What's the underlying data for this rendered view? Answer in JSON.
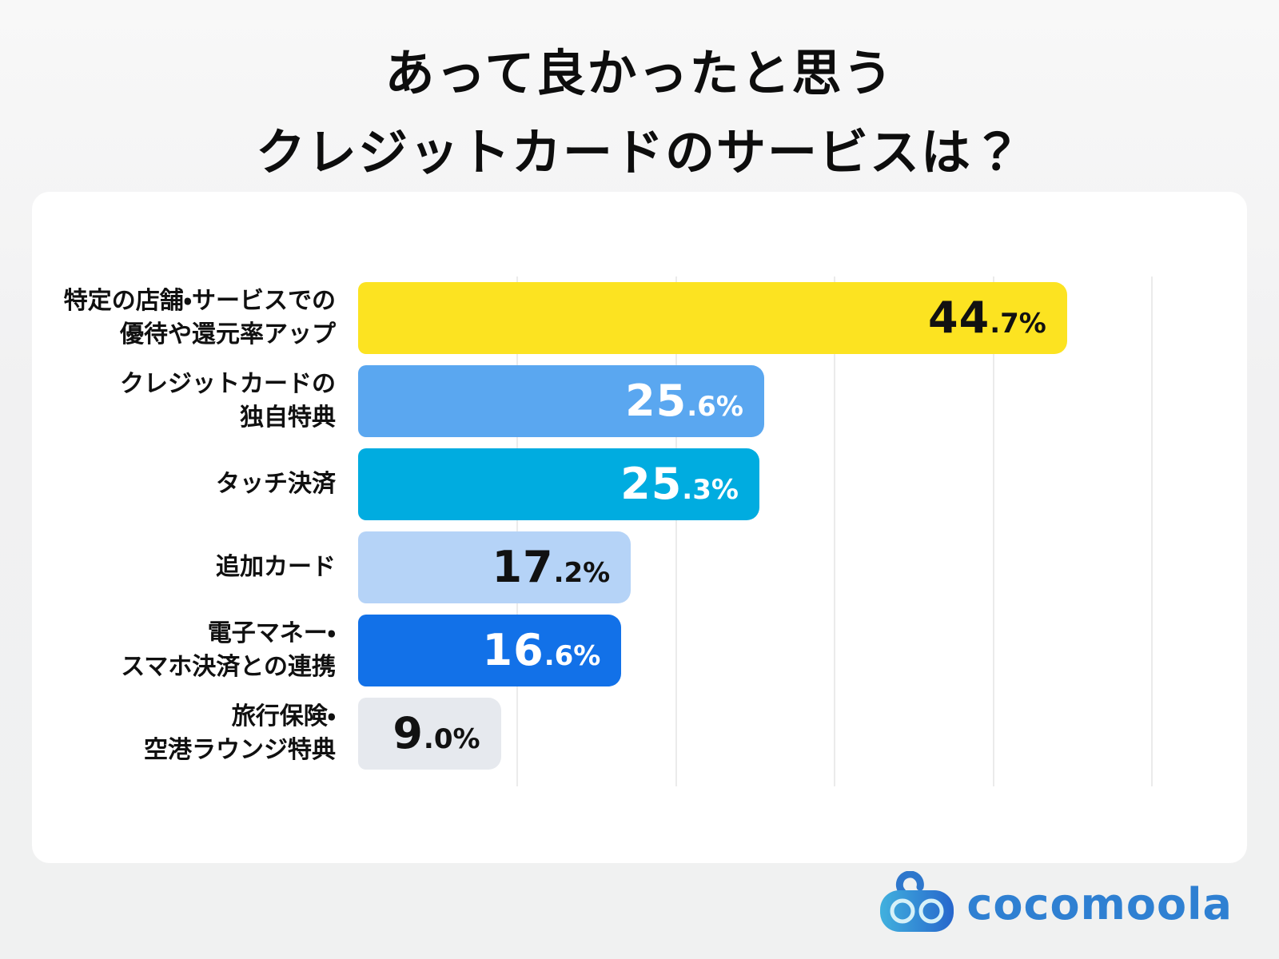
{
  "title": {
    "line1": "あって良かったと思う",
    "line2": "クレジットカードのサービスは？"
  },
  "chart_data": {
    "type": "bar",
    "orientation": "horizontal",
    "title": "あって良かったと思うクレジットカードのサービスは？",
    "xlabel": "",
    "ylabel": "",
    "xlim": [
      0,
      50
    ],
    "gridline_interval_pct": 10,
    "grid": "vertical-lines",
    "legend": "none",
    "categories": [
      "特定の店舗・サービスでの優待や還元率アップ",
      "クレジットカードの独自特典",
      "タッチ決済",
      "追加カード",
      "電子マネー・スマホ決済との連携",
      "旅行保険・空港ラウンジ特典"
    ],
    "values": [
      44.7,
      25.6,
      25.3,
      17.2,
      16.6,
      9.0
    ],
    "bars": [
      {
        "label": "特定の店舗・サービスでの\n優待や還元率アップ",
        "value": 44.7,
        "int_part": "44",
        "frac_part": ".7%",
        "color": "#fce321",
        "text_color": "#111111"
      },
      {
        "label": "クレジットカードの\n独自特典",
        "value": 25.6,
        "int_part": "25",
        "frac_part": ".6%",
        "color": "#5aa7f0",
        "text_color": "#ffffff"
      },
      {
        "label": "タッチ決済",
        "value": 25.3,
        "int_part": "25",
        "frac_part": ".3%",
        "color": "#00ace0",
        "text_color": "#ffffff"
      },
      {
        "label": "追加カード",
        "value": 17.2,
        "int_part": "17",
        "frac_part": ".2%",
        "color": "#b5d3f7",
        "text_color": "#111111"
      },
      {
        "label": "電子マネー・\nスマホ決済との連携",
        "value": 16.6,
        "int_part": "16",
        "frac_part": ".6%",
        "color": "#1271e8",
        "text_color": "#ffffff"
      },
      {
        "label": "旅行保険・\n空港ラウンジ特典",
        "value": 9.0,
        "int_part": "9",
        "frac_part": ".0%",
        "color": "#e6e9ee",
        "text_color": "#111111"
      }
    ]
  },
  "logo": {
    "text": "cocomoola",
    "brand_color": "#2f80d2",
    "icon": "cocomoola-robot-face-icon"
  }
}
